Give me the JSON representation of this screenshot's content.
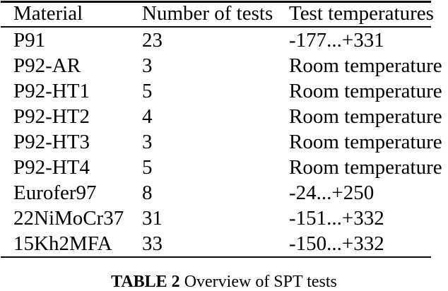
{
  "table": {
    "columns": [
      "Material",
      "Number of tests",
      "Test temperatures"
    ],
    "rows": [
      [
        "P91",
        "23",
        "-177...+331"
      ],
      [
        "P92-AR",
        "3",
        "Room temperature"
      ],
      [
        "P92-HT1",
        "5",
        "Room temperature"
      ],
      [
        "P92-HT2",
        "4",
        "Room temperature"
      ],
      [
        "P92-HT3",
        "3",
        "Room temperature"
      ],
      [
        "P92-HT4",
        "5",
        "Room temperature"
      ],
      [
        "Eurofer97",
        "8",
        "-24...+250"
      ],
      [
        "22NiMoCr37",
        "31",
        "-151...+332"
      ],
      [
        "15Kh2MFA",
        "33",
        "-150...+332"
      ]
    ]
  },
  "caption": {
    "label": "TABLE 2",
    "text": "Overview of SPT tests"
  },
  "colors": {
    "text": "#000000",
    "background": "#ffffff",
    "rule": "#0a0a0a"
  }
}
